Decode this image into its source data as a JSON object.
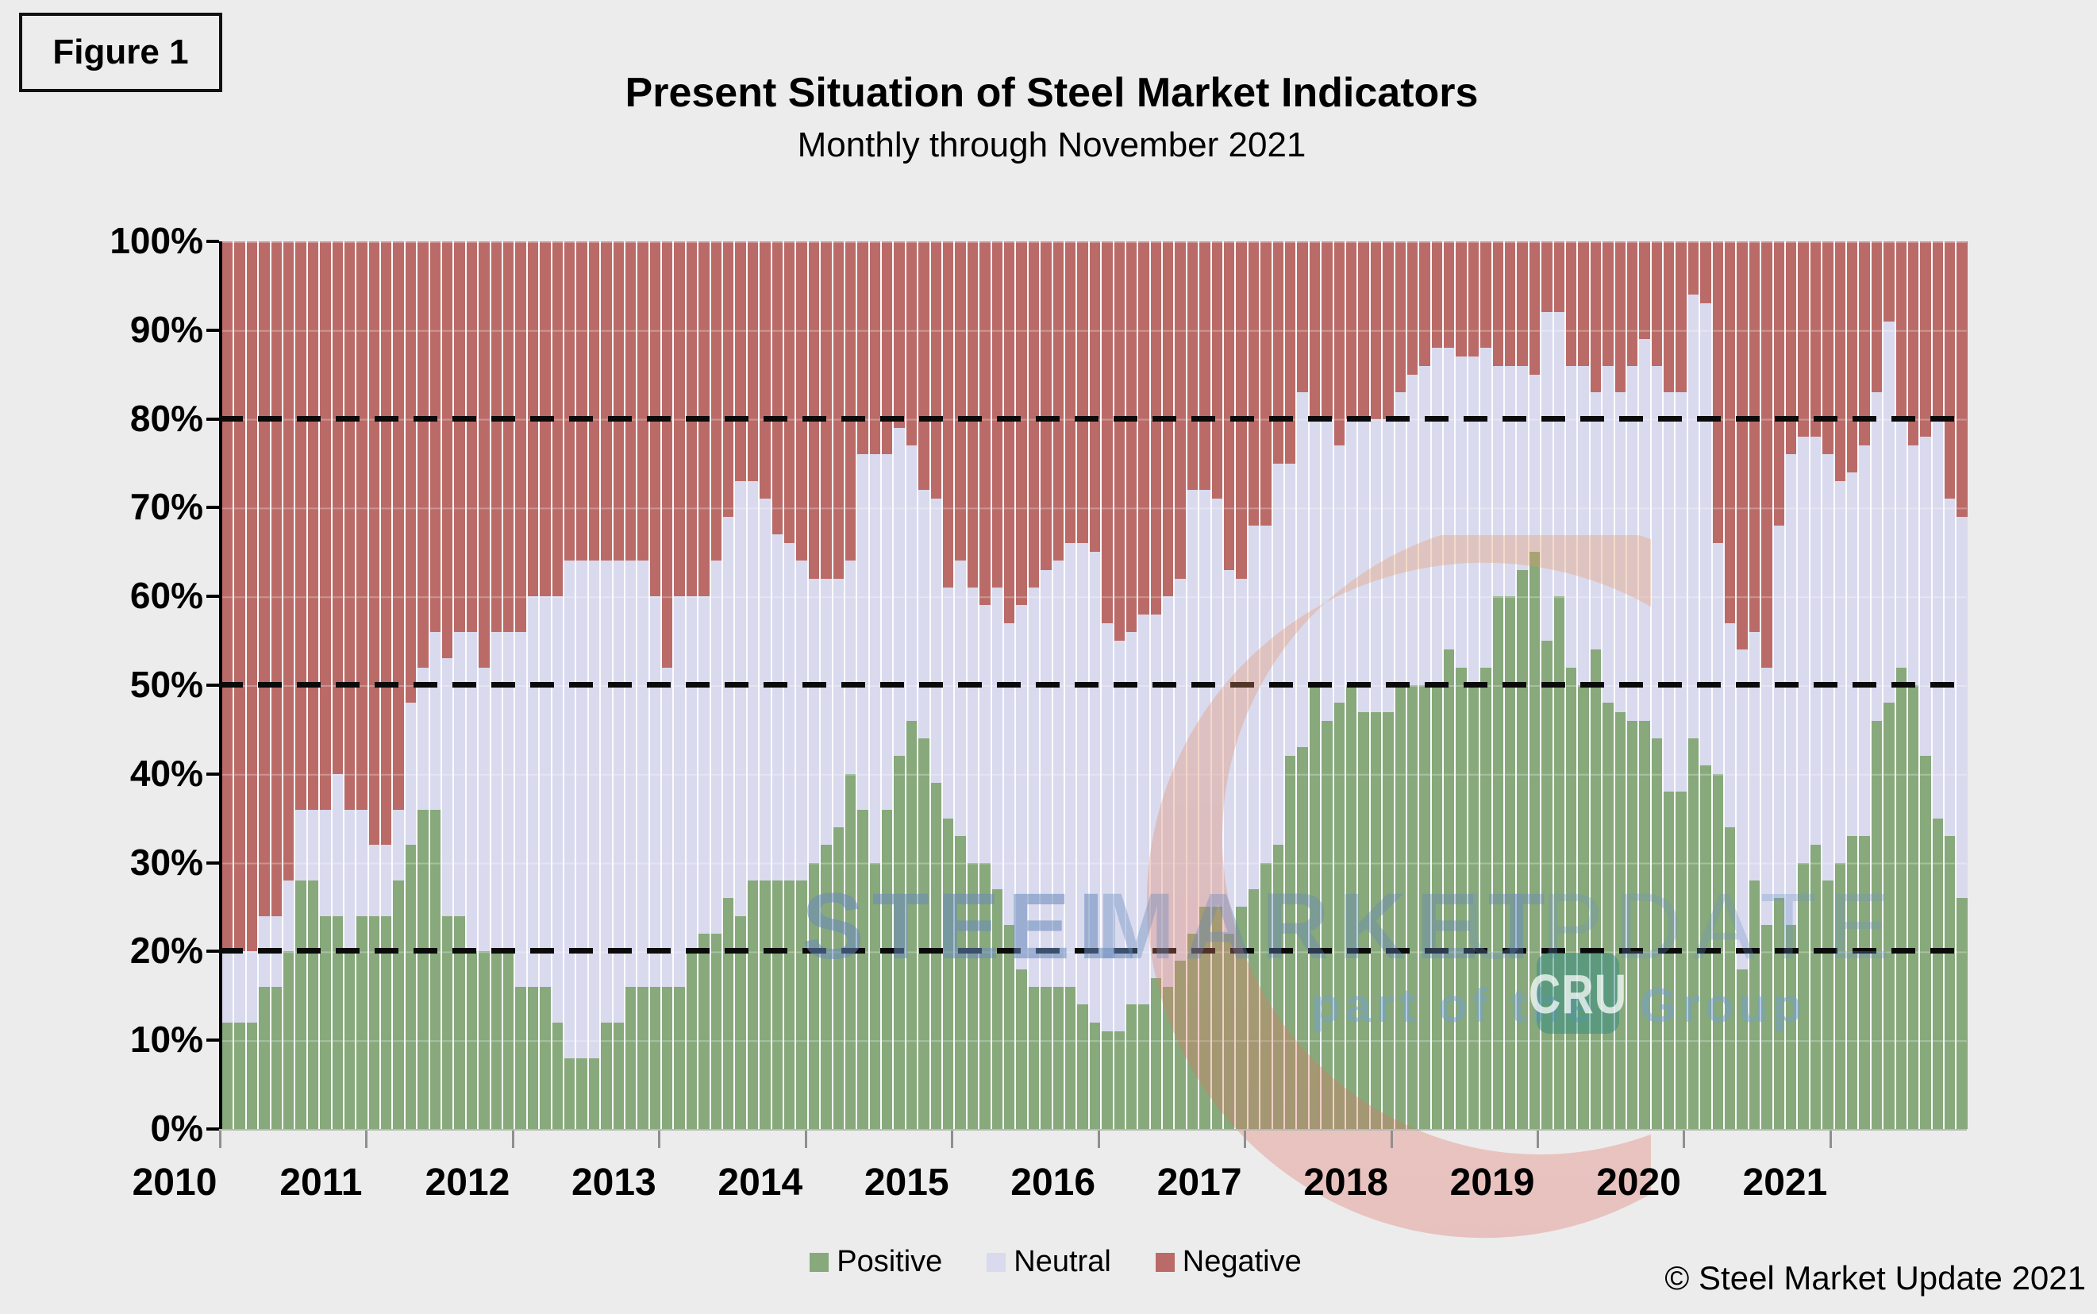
{
  "figure_label": "Figure 1",
  "header": {
    "title": "Present Situation of Steel Market Indicators",
    "subtitle": "Monthly through November 2021"
  },
  "copyright": "© Steel Market Update 2021",
  "watermark": {
    "word1": "STEEL",
    "word2": "MARKET",
    "word3": "UPDATE",
    "tagline_prefix": "part of the",
    "cru": "CRU",
    "tagline_suffix": "Group",
    "text_color": "#678abc",
    "crescent_color_top": "#e89a66",
    "crescent_color_bottom": "#dd6a62",
    "cru_box_color": "#348c80"
  },
  "legend": [
    {
      "label": "Positive",
      "color": "#87a97b"
    },
    {
      "label": "Neutral",
      "color": "#d9daee"
    },
    {
      "label": "Negative",
      "color": "#ba6b68"
    }
  ],
  "colors": {
    "background": "#ececec",
    "bar_gap": "#fbfbfd",
    "reference_line": "#0a0a0a",
    "axis": "#000000",
    "x_tick": "#8f8f8f"
  },
  "chart_data": {
    "type": "bar",
    "stacked_percent": true,
    "stack_total": 100,
    "title": "Present Situation of Steel Market Indicators",
    "subtitle": "Monthly through November 2021",
    "x_start": "2010-01",
    "x_end": "2021-11",
    "months_per_year": 12,
    "x_tick_labels": [
      "2010",
      "2011",
      "2012",
      "2013",
      "2014",
      "2015",
      "2016",
      "2017",
      "2018",
      "2019",
      "2020",
      "2021"
    ],
    "y_tick_labels": [
      "0%",
      "10%",
      "20%",
      "30%",
      "40%",
      "50%",
      "60%",
      "70%",
      "80%",
      "90%",
      "100%"
    ],
    "ylim": [
      0,
      100
    ],
    "reference_lines_pct": [
      20,
      50,
      80
    ],
    "grid": "faint horizontal every 10%",
    "legend_position": "bottom-center",
    "series": [
      {
        "name": "Positive",
        "color": "#87a97b",
        "values": [
          12,
          12,
          12,
          16,
          16,
          20,
          28,
          28,
          24,
          24,
          20,
          24,
          24,
          24,
          28,
          32,
          36,
          36,
          24,
          24,
          20,
          20,
          20,
          20,
          16,
          16,
          16,
          12,
          8,
          8,
          8,
          12,
          12,
          16,
          16,
          16,
          16,
          16,
          20,
          22,
          22,
          26,
          24,
          28,
          28,
          28,
          28,
          28,
          30,
          32,
          34,
          40,
          36,
          30,
          36,
          42,
          46,
          44,
          39,
          35,
          33,
          30,
          30,
          27,
          23,
          18,
          16,
          16,
          16,
          16,
          14,
          12,
          11,
          11,
          14,
          14,
          17,
          16,
          19,
          22,
          25,
          25,
          22,
          25,
          27,
          30,
          32,
          42,
          43,
          50,
          46,
          48,
          50,
          47,
          47,
          47,
          50,
          50,
          50,
          50,
          54,
          52,
          50,
          52,
          60,
          60,
          63,
          65,
          55,
          60,
          52,
          50,
          54,
          48,
          47,
          46,
          46,
          44,
          38,
          38,
          44,
          41,
          40,
          34,
          18,
          28,
          23,
          26,
          23,
          30,
          32,
          28,
          30,
          33,
          33,
          46,
          48,
          52,
          50,
          42,
          35,
          33,
          26
        ]
      },
      {
        "name": "Neutral",
        "color": "#d9daee",
        "values": [
          8,
          8,
          8,
          8,
          8,
          8,
          8,
          8,
          12,
          16,
          16,
          12,
          8,
          8,
          8,
          16,
          16,
          20,
          29,
          32,
          36,
          32,
          36,
          36,
          40,
          44,
          44,
          48,
          56,
          56,
          56,
          52,
          52,
          48,
          48,
          44,
          36,
          44,
          40,
          38,
          42,
          43,
          49,
          45,
          43,
          39,
          38,
          36,
          32,
          30,
          28,
          24,
          40,
          46,
          40,
          37,
          31,
          28,
          32,
          26,
          31,
          31,
          29,
          34,
          34,
          41,
          45,
          47,
          48,
          50,
          52,
          53,
          46,
          44,
          42,
          44,
          41,
          44,
          43,
          50,
          47,
          46,
          41,
          37,
          41,
          38,
          43,
          33,
          40,
          30,
          34,
          29,
          30,
          33,
          33,
          33,
          33,
          35,
          36,
          38,
          34,
          35,
          37,
          36,
          26,
          26,
          23,
          20,
          37,
          32,
          34,
          36,
          29,
          38,
          36,
          40,
          43,
          42,
          45,
          45,
          50,
          52,
          26,
          23,
          36,
          28,
          29,
          42,
          53,
          48,
          46,
          48,
          43,
          41,
          44,
          37,
          43,
          28,
          27,
          36,
          45,
          38,
          43
        ]
      },
      {
        "name": "Negative",
        "color": "#ba6b68",
        "values": [
          80,
          80,
          80,
          76,
          76,
          72,
          64,
          64,
          64,
          60,
          64,
          64,
          68,
          68,
          64,
          52,
          48,
          44,
          47,
          44,
          44,
          48,
          44,
          44,
          44,
          40,
          40,
          40,
          36,
          36,
          36,
          36,
          36,
          36,
          36,
          40,
          48,
          40,
          40,
          40,
          36,
          31,
          27,
          27,
          29,
          33,
          34,
          36,
          38,
          38,
          38,
          36,
          24,
          24,
          24,
          21,
          23,
          28,
          29,
          39,
          36,
          39,
          41,
          39,
          43,
          41,
          39,
          37,
          36,
          34,
          34,
          35,
          43,
          45,
          44,
          42,
          42,
          40,
          38,
          28,
          28,
          29,
          37,
          38,
          32,
          32,
          25,
          25,
          17,
          20,
          20,
          23,
          20,
          20,
          20,
          20,
          17,
          15,
          14,
          12,
          12,
          13,
          13,
          12,
          14,
          14,
          14,
          15,
          8,
          8,
          14,
          14,
          17,
          14,
          17,
          14,
          11,
          14,
          17,
          17,
          6,
          7,
          34,
          43,
          46,
          44,
          48,
          32,
          24,
          22,
          22,
          24,
          27,
          26,
          23,
          17,
          9,
          20,
          23,
          22,
          20,
          29,
          31
        ]
      }
    ]
  }
}
